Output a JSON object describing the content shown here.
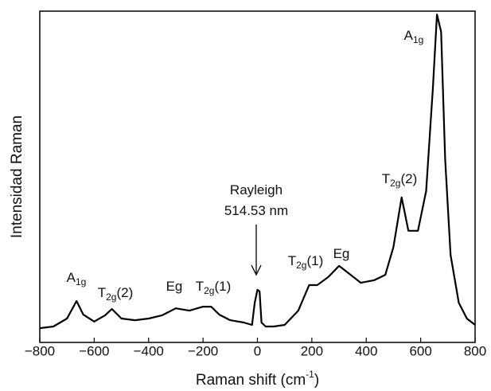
{
  "chart_data": {
    "type": "line",
    "x_label": {
      "text": "Raman shift (cm",
      "sup": "-1",
      "suffix": ")"
    },
    "y_label": "Intensidad  Raman",
    "xlim": [
      -800,
      800
    ],
    "xticks": [
      {
        "value": -800,
        "label": "−800"
      },
      {
        "value": -600,
        "label": "−600"
      },
      {
        "value": -400,
        "label": "−400"
      },
      {
        "value": -200,
        "label": "−200"
      },
      0,
      200,
      400,
      600,
      800
    ],
    "ylim": [
      0,
      100
    ],
    "x": [
      -800,
      -750,
      -700,
      -665,
      -640,
      -600,
      -560,
      -535,
      -500,
      -450,
      -400,
      -350,
      -300,
      -250,
      -200,
      -170,
      -140,
      -100,
      -50,
      -20,
      -10,
      0,
      8,
      15,
      30,
      60,
      100,
      150,
      190,
      220,
      260,
      300,
      330,
      380,
      430,
      470,
      500,
      530,
      555,
      590,
      620,
      645,
      660,
      675,
      690,
      710,
      740,
      770,
      800
    ],
    "series": [
      {
        "color": "#000000",
        "values": [
          4.3,
          4.8,
          7.2,
          12.5,
          8.4,
          6.3,
          8.2,
          10.1,
          7.2,
          6.7,
          7.2,
          8.2,
          10.3,
          9.6,
          10.8,
          10.8,
          8.4,
          6.7,
          6.0,
          5.3,
          12.0,
          15.9,
          15.4,
          6.0,
          4.8,
          4.8,
          5.3,
          9.6,
          17.3,
          17.3,
          19.7,
          23.1,
          21.2,
          18.0,
          18.8,
          20.4,
          28.8,
          43.8,
          33.7,
          33.7,
          45.7,
          76.9,
          99.0,
          93.8,
          55.3,
          26.4,
          12.0,
          7.2,
          5.3
        ]
      }
    ],
    "annotations": [
      {
        "text": "A",
        "sub": "1g",
        "suffix": ""
      },
      {
        "text": "T",
        "sub": "2g",
        "suffix": "(2)"
      },
      {
        "text": "Eg",
        "sub": "",
        "suffix": ""
      },
      {
        "text": "T",
        "sub": "2g",
        "suffix": "(1)"
      },
      {
        "text": "Rayleigh",
        "sub": "",
        "suffix": ""
      },
      {
        "text": "514.53 nm",
        "sub": "",
        "suffix": ""
      },
      {
        "text": "T",
        "sub": "2g",
        "suffix": "(1)"
      },
      {
        "text": "Eg",
        "sub": "",
        "suffix": ""
      },
      {
        "text": "T",
        "sub": "2g",
        "suffix": "(2)"
      },
      {
        "text": "A",
        "sub": "1g",
        "suffix": ""
      }
    ]
  }
}
